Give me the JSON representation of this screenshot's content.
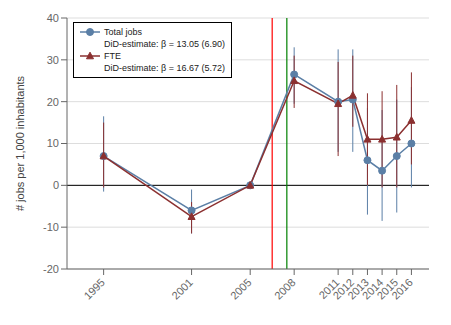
{
  "chart_data": {
    "type": "line",
    "ylabel": "# jobs per 1,000 inhabitants",
    "x": [
      1995,
      2001,
      2005,
      2008,
      2011,
      2012,
      2013,
      2014,
      2015,
      2016
    ],
    "series": [
      {
        "name": "Total jobs",
        "color": "#5b7fa6",
        "marker": "o",
        "line_style": "solid",
        "values": [
          7.0,
          -6.0,
          0.0,
          26.5,
          20.0,
          20.5,
          6.0,
          3.5,
          7.0,
          10.0
        ],
        "error_lo": [
          8.5,
          5.5,
          0.0,
          7.0,
          12.0,
          12.5,
          13.0,
          12.0,
          13.5,
          10.5
        ],
        "error_hi": [
          9.5,
          5.0,
          0.0,
          6.5,
          12.5,
          12.0,
          12.5,
          14.5,
          13.5,
          13.5
        ],
        "estimate": "DiD-estimate: β = 13.05 (6.90)"
      },
      {
        "name": "FTE",
        "color": "#8b3030",
        "marker": "^",
        "line_style": "solid",
        "values": [
          7.0,
          -7.5,
          0.0,
          25.0,
          19.5,
          21.5,
          11.0,
          11.0,
          11.5,
          15.5
        ],
        "error_lo": [
          7.5,
          4.0,
          0.0,
          6.5,
          12.5,
          7.5,
          11.0,
          11.5,
          12.0,
          10.5
        ],
        "error_hi": [
          8.0,
          3.5,
          0.0,
          6.0,
          10.0,
          9.5,
          11.0,
          11.5,
          12.5,
          11.5
        ],
        "estimate": "DiD-estimate: β = 16.67 (5.72)"
      }
    ],
    "vertical_lines": [
      {
        "x": 2006.5,
        "color": "red"
      },
      {
        "x": 2007.5,
        "color": "green"
      }
    ],
    "horizontal_lines": [
      {
        "y": 0,
        "color": "black"
      }
    ],
    "xlim": [
      1992.5,
      2017.2
    ],
    "xticks": [
      1995,
      2001,
      2005,
      2008,
      2011,
      2012,
      2013,
      2014,
      2015,
      2016
    ],
    "ylim": [
      -20,
      40
    ],
    "yticks": [
      -20,
      -10,
      0,
      10,
      20,
      30,
      40
    ],
    "grid": "y",
    "legend": "upper left"
  }
}
